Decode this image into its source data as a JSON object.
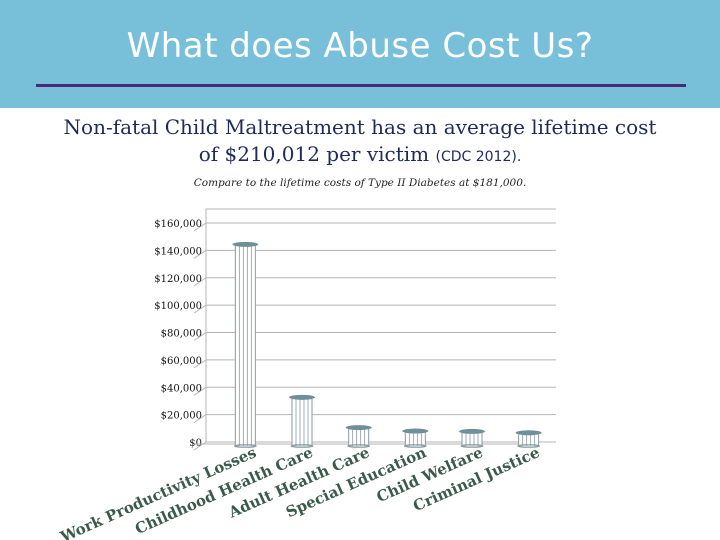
{
  "slide": {
    "title": "What does Abuse Cost Us?",
    "subtitle_main": "Non-fatal Child Maltreatment has an average lifetime cost of $210,012 per victim",
    "subtitle_source": "(CDC 2012).",
    "note": "Compare to the lifetime costs of Type II Diabetes at $181,000."
  },
  "colors": {
    "header_bg": "#78bfd9",
    "rule": "#4a2a78",
    "bar_fill": "#ffffff",
    "bar_stroke": "#8a9aa0",
    "bar_cap": "#6f8f9a",
    "grid": "#b5b5b5",
    "label_text": "#3a5a4a"
  },
  "chart_data": {
    "type": "bar",
    "categories": [
      "Work Productivity Losses",
      "Childhood Health Care",
      "Adult Health Care",
      "Special Education",
      "Child Welfare",
      "Criminal Justice"
    ],
    "values": [
      144360,
      32648,
      10530,
      7999,
      7728,
      6747
    ],
    "y_tick_labels": [
      "$0",
      "$20,000",
      "$40,000",
      "$60,000",
      "$80,000",
      "$100,000",
      "$120,000",
      "$140,000",
      "$160,000"
    ],
    "ylim": [
      0,
      160000
    ],
    "grid": true,
    "legend": "none"
  }
}
